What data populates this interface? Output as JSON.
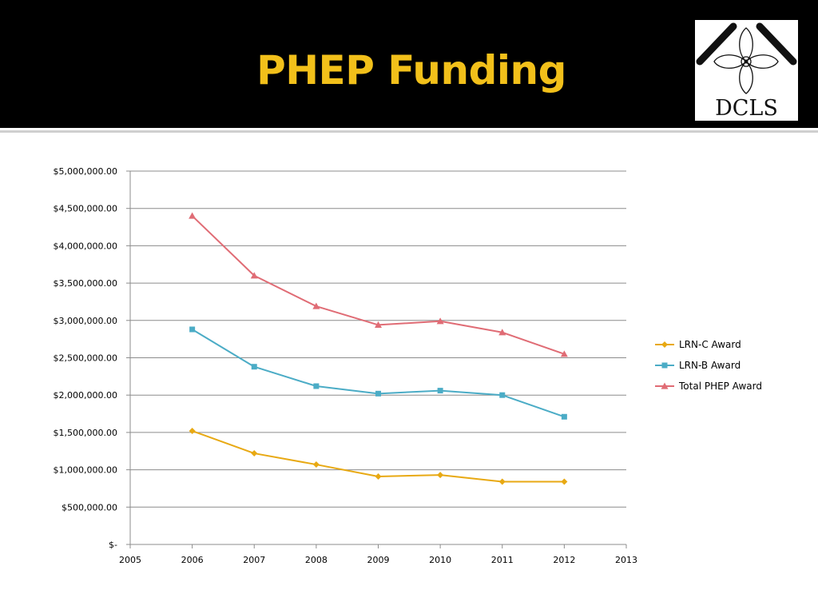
{
  "slide": {
    "title": "PHEP Funding",
    "logo_text": "DCLS",
    "colors": {
      "header_bg": "#000000",
      "title": "#F2C01A"
    }
  },
  "chart_data": {
    "type": "line",
    "title": "",
    "xlabel": "",
    "ylabel": "",
    "x": [
      2006,
      2007,
      2008,
      2009,
      2010,
      2011,
      2012
    ],
    "xlim": [
      2005,
      2013
    ],
    "ylim": [
      0,
      5000000
    ],
    "x_ticks": [
      "2005",
      "2006",
      "2007",
      "2008",
      "2009",
      "2010",
      "2011",
      "2012",
      "2013"
    ],
    "y_ticks": [
      "$-",
      "$500,000.00",
      "$1,000,000.00",
      "$1,500,000.00",
      "$2,000,000.00",
      "$2,500,000.00",
      "$3,000,000.00",
      "$3,500,000.00",
      "$4,000,000.00",
      "$4,500,000.00",
      "$5,000,000.00"
    ],
    "grid": true,
    "legend_position": "right",
    "series": [
      {
        "name": "LRN-C Award",
        "color": "#E8A913",
        "marker": "diamond",
        "values": [
          1520000,
          1220000,
          1070000,
          910000,
          930000,
          840000,
          840000
        ]
      },
      {
        "name": "LRN-B Award",
        "color": "#4BACC6",
        "marker": "square",
        "values": [
          2880000,
          2380000,
          2120000,
          2020000,
          2060000,
          2000000,
          1710000
        ]
      },
      {
        "name": "Total PHEP Award",
        "color": "#E06C75",
        "marker": "triangle",
        "values": [
          4400000,
          3600000,
          3190000,
          2940000,
          2990000,
          2840000,
          2550000
        ]
      }
    ]
  }
}
